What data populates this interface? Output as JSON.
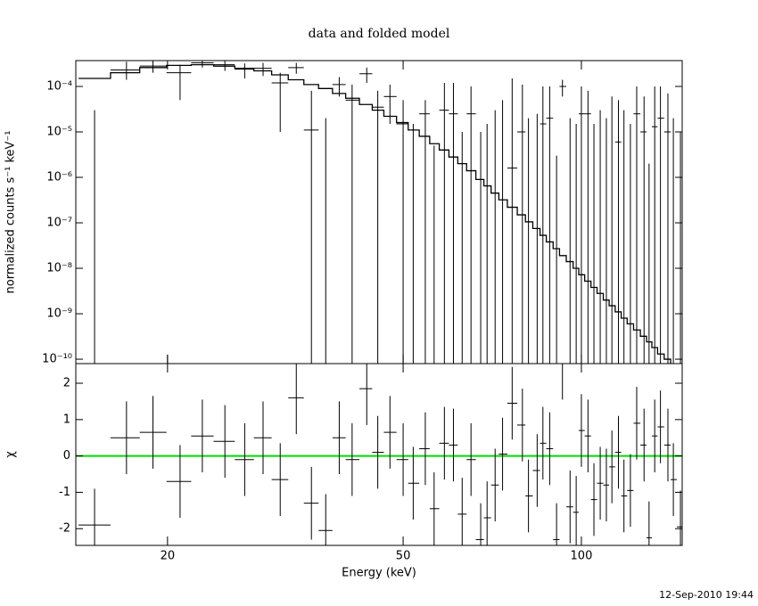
{
  "timestamp": "12-Sep-2010 19:44",
  "chart_data": [
    {
      "type": "line",
      "title": "data and folded model",
      "y_label": "normalized counts s⁻¹ keV⁻¹",
      "log_x": true,
      "log_y": true,
      "xlim": [
        14,
        148
      ],
      "ylim": [
        8e-11,
        0.00037
      ],
      "yticks": [
        {
          "value": 1e-10,
          "label": "10⁻¹⁰"
        },
        {
          "value": 1e-09,
          "label": "10⁻⁹"
        },
        {
          "value": 1e-08,
          "label": "10⁻⁸"
        },
        {
          "value": 1e-07,
          "label": "10⁻⁷"
        },
        {
          "value": 1e-06,
          "label": "10⁻⁶"
        },
        {
          "value": 1e-05,
          "label": "10⁻⁵"
        },
        {
          "value": 0.0001,
          "label": "10⁻⁴"
        }
      ],
      "x": [
        15.06,
        17.05,
        18.9,
        21.0,
        22.9,
        25.0,
        27.0,
        29.0,
        31.0,
        33.0,
        35.0,
        37.0,
        39.0,
        41.0,
        43.4,
        45.3,
        47.5,
        50,
        52,
        54.5,
        56.4,
        58.7,
        60.8,
        62.9,
        65.1,
        67.6,
        69.3,
        71.5,
        73.6,
        76.4,
        79.5,
        81.4,
        84.2,
        86.1,
        88.4,
        90.8,
        92.9,
        95.7,
        98.0,
        100,
        102.6,
        105,
        107.6,
        110.2,
        112.6,
        115.5,
        118,
        121,
        124,
        127.6,
        130.1,
        133,
        136,
        140,
        143,
        147
      ],
      "series": [
        {
          "color": "#000000",
          "values": [
            0,
            0.00023,
            0.00028,
            0.0002,
            0.00033,
            0.0003,
            0.00024,
            0.00025,
            0.00012,
            0.00026,
            1.1e-05,
            0,
            0.00011,
            5e-05,
            0.00019,
            3.5e-05,
            6e-05,
            1.5e-05,
            0,
            2.5e-05,
            0,
            3e-05,
            2.5e-05,
            0,
            2.5e-05,
            0,
            0,
            0,
            0,
            1.6e-06,
            1e-05,
            0,
            0,
            1.5e-05,
            2e-05,
            0,
            0.0001,
            0,
            0,
            2.5e-05,
            2.5e-05,
            0,
            0,
            0,
            0,
            6e-06,
            0,
            0,
            2.5e-05,
            1e-05,
            0,
            1.3e-05,
            2e-05,
            1e-05,
            0,
            0
          ],
          "upper": [
            3e-05,
            0.00035,
            0.00038,
            0.0003,
            0.0004,
            0.00038,
            0.00032,
            0.00033,
            0.0002,
            0.00033,
            8e-05,
            2e-05,
            0.00016,
            0.00011,
            0.00026,
            8e-05,
            0.00011,
            5e-05,
            1.5e-05,
            5e-05,
            5e-06,
            0.00012,
            0.00012,
            1e-05,
            0.0001,
            1e-05,
            1.5e-05,
            3e-05,
            5e-05,
            0.00015,
            0.00011,
            2e-05,
            2.5e-05,
            0.0001,
            0.0001,
            3e-06,
            0.00014,
            2e-05,
            1.5e-05,
            0.0001,
            8e-05,
            1.5e-05,
            3e-05,
            2e-05,
            6e-05,
            5e-05,
            3e-05,
            1.5e-05,
            0.0001,
            6e-05,
            2e-06,
            0.0001,
            0.0001,
            7e-05,
            2e-05,
            1e-05
          ],
          "lower": [
            0,
            0.00014,
            0.0002,
            5e-05,
            0.00026,
            0.00022,
            0.00015,
            0.00017,
            1e-05,
            0.00019,
            0,
            0,
            6e-05,
            0,
            0.00012,
            0,
            1.5e-05,
            0,
            0,
            0,
            0,
            0,
            0,
            0,
            0,
            0,
            0,
            0,
            0,
            0,
            0,
            0,
            0,
            0,
            0,
            0,
            6e-05,
            0,
            0,
            0,
            0,
            0,
            0,
            0,
            0,
            0,
            0,
            0,
            0,
            0,
            0,
            0,
            0,
            0,
            0,
            0
          ]
        },
        {
          "color": "#000000",
          "step": true,
          "values": [
            0.00015,
            0.0002,
            0.00026,
            0.00029,
            0.0003,
            0.00028,
            0.00025,
            0.00022,
            0.00018,
            0.00014,
            0.00011,
            9e-05,
            7e-05,
            5.5e-05,
            4e-05,
            3e-05,
            2.2e-05,
            1.6e-05,
            1.1e-05,
            8e-06,
            5.5e-06,
            4e-06,
            2.8e-06,
            2e-06,
            1.4e-06,
            9e-07,
            6.5e-07,
            4.5e-07,
            3.2e-07,
            2.2e-07,
            1.5e-07,
            1.05e-07,
            7.5e-08,
            5.3e-08,
            3.8e-08,
            2.7e-08,
            1.9e-08,
            1.4e-08,
            1e-08,
            7.2e-09,
            5.2e-09,
            3.8e-09,
            2.8e-09,
            2e-09,
            1.5e-09,
            1.1e-09,
            8e-10,
            6e-10,
            4.4e-10,
            3.2e-10,
            2.4e-10,
            1.8e-10,
            1.3e-10,
            1e-10,
            7.5e-11,
            5.5e-11
          ]
        }
      ]
    },
    {
      "type": "line",
      "x_label": "Energy (keV)",
      "y_label": "χ",
      "log_x": true,
      "xlim": [
        14,
        148
      ],
      "ylim": [
        -2.46,
        2.54
      ],
      "xticks": [
        20,
        50,
        100
      ],
      "yticks": [
        -2,
        -1,
        0,
        1,
        2
      ],
      "x": [
        15.06,
        17.05,
        18.9,
        21.0,
        22.9,
        25.0,
        27.0,
        29.0,
        31.0,
        33.0,
        35.0,
        37.0,
        39.0,
        41.0,
        43.4,
        45.3,
        47.5,
        50,
        52,
        54.5,
        56.4,
        58.7,
        60.8,
        62.9,
        65.1,
        67.6,
        69.3,
        71.5,
        73.6,
        76.4,
        79.5,
        81.4,
        84.2,
        86.1,
        88.4,
        90.8,
        92.9,
        95.7,
        98.0,
        100,
        102.6,
        105,
        107.6,
        110.2,
        112.6,
        115.5,
        118,
        121,
        124,
        127.6,
        130.1,
        133,
        136,
        140,
        143,
        147
      ],
      "values": [
        -1.9,
        0.5,
        0.65,
        -0.7,
        0.55,
        0.4,
        -0.1,
        0.5,
        -0.65,
        1.6,
        -1.3,
        -2.05,
        0.5,
        -0.1,
        1.85,
        0.1,
        0.65,
        -0.1,
        -0.75,
        0.2,
        -1.45,
        0.35,
        0.3,
        -1.6,
        -0.1,
        -2.3,
        -1.7,
        -0.8,
        0.05,
        1.45,
        0.85,
        -1.1,
        -0.4,
        0.35,
        0.2,
        -2.3,
        2.55,
        -1.4,
        -1.55,
        0.7,
        0.55,
        -1.2,
        -0.75,
        -0.8,
        -0.3,
        0.1,
        -1.1,
        -0.95,
        0.9,
        0.3,
        -2.25,
        0.55,
        0.8,
        0.3,
        -0.65,
        -1.95
      ],
      "yerr": 1,
      "color": "#000000",
      "zero_line_color": "#00dd00"
    }
  ]
}
